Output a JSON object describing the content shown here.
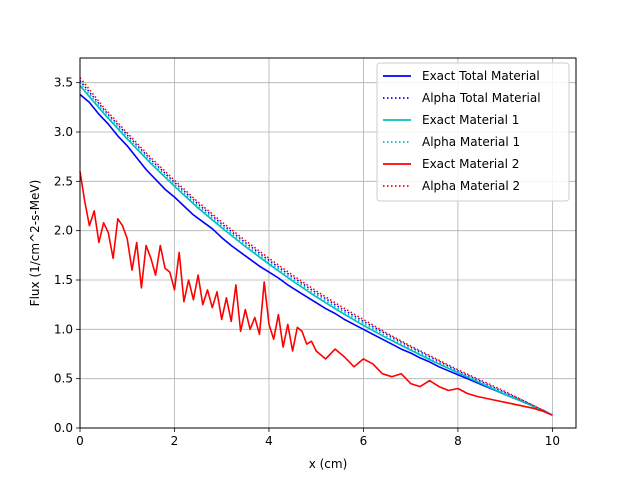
{
  "chart_data": {
    "type": "line",
    "title": "",
    "xlabel": "x (cm)",
    "ylabel": "Flux (1/cm^2-s-MeV)",
    "xlim": [
      0,
      10.5
    ],
    "ylim": [
      0,
      3.75
    ],
    "xticks": [
      0,
      2,
      4,
      6,
      8,
      10
    ],
    "yticks": [
      0.0,
      0.5,
      1.0,
      1.5,
      2.0,
      2.5,
      3.0,
      3.5
    ],
    "grid": true,
    "legend_position": "top-right",
    "series": [
      {
        "name": "Exact Total Material",
        "color": "#0000ff",
        "style": "solid",
        "x": [
          0,
          0.2,
          0.4,
          0.6,
          0.8,
          1.0,
          1.2,
          1.4,
          1.6,
          1.8,
          2.0,
          2.2,
          2.4,
          2.6,
          2.8,
          3.0,
          3.2,
          3.4,
          3.6,
          3.8,
          4.0,
          4.2,
          4.4,
          4.6,
          4.8,
          5.0,
          5.2,
          5.4,
          5.6,
          5.8,
          6.0,
          6.2,
          6.4,
          6.6,
          6.8,
          7.0,
          7.2,
          7.4,
          7.6,
          7.8,
          8.0,
          8.2,
          8.4,
          8.6,
          8.8,
          9.0,
          9.2,
          9.4,
          9.6,
          9.8,
          10.0
        ],
        "y": [
          3.38,
          3.3,
          3.18,
          3.08,
          2.96,
          2.86,
          2.74,
          2.62,
          2.52,
          2.42,
          2.34,
          2.25,
          2.16,
          2.09,
          2.02,
          1.93,
          1.85,
          1.78,
          1.71,
          1.64,
          1.58,
          1.52,
          1.45,
          1.39,
          1.33,
          1.27,
          1.21,
          1.16,
          1.1,
          1.05,
          1.0,
          0.95,
          0.9,
          0.85,
          0.8,
          0.76,
          0.71,
          0.67,
          0.62,
          0.58,
          0.54,
          0.5,
          0.46,
          0.42,
          0.38,
          0.34,
          0.3,
          0.26,
          0.22,
          0.18,
          0.13
        ]
      },
      {
        "name": "Alpha Total Material",
        "color": "#0000ff",
        "style": "dotted",
        "x": [
          0,
          0.5,
          1.0,
          1.5,
          2.0,
          2.5,
          3.0,
          3.5,
          4.0,
          4.5,
          5.0,
          5.5,
          6.0,
          6.5,
          7.0,
          7.5,
          8.0,
          8.5,
          9.0,
          9.5,
          10.0
        ],
        "y": [
          3.52,
          3.23,
          2.97,
          2.72,
          2.49,
          2.27,
          2.07,
          1.88,
          1.7,
          1.53,
          1.37,
          1.22,
          1.08,
          0.95,
          0.82,
          0.7,
          0.58,
          0.47,
          0.36,
          0.25,
          0.13
        ]
      },
      {
        "name": "Exact Material 1",
        "color": "#00bfbf",
        "style": "solid",
        "x": [
          0,
          0.5,
          1.0,
          1.5,
          2.0,
          2.5,
          3.0,
          3.5,
          4.0,
          4.5,
          5.0,
          5.5,
          6.0,
          6.5,
          7.0,
          7.5,
          8.0,
          8.5,
          9.0,
          9.5,
          10.0
        ],
        "y": [
          3.47,
          3.19,
          2.93,
          2.68,
          2.45,
          2.23,
          2.03,
          1.84,
          1.66,
          1.49,
          1.33,
          1.18,
          1.04,
          0.91,
          0.79,
          0.67,
          0.56,
          0.45,
          0.34,
          0.24,
          0.13
        ]
      },
      {
        "name": "Alpha Material 1",
        "color": "#00bfbf",
        "style": "dotted",
        "x": [
          0,
          0.5,
          1.0,
          1.5,
          2.0,
          2.5,
          3.0,
          3.5,
          4.0,
          4.5,
          5.0,
          5.5,
          6.0,
          6.5,
          7.0,
          7.5,
          8.0,
          8.5,
          9.0,
          9.5,
          10.0
        ],
        "y": [
          3.5,
          3.21,
          2.95,
          2.7,
          2.47,
          2.25,
          2.05,
          1.86,
          1.68,
          1.51,
          1.35,
          1.2,
          1.06,
          0.93,
          0.8,
          0.68,
          0.57,
          0.46,
          0.35,
          0.24,
          0.13
        ]
      },
      {
        "name": "Exact Material 2",
        "color": "#ff0000",
        "style": "solid",
        "x": [
          0,
          0.1,
          0.2,
          0.3,
          0.4,
          0.5,
          0.6,
          0.7,
          0.8,
          0.9,
          1.0,
          1.1,
          1.2,
          1.3,
          1.4,
          1.5,
          1.6,
          1.7,
          1.8,
          1.9,
          2.0,
          2.1,
          2.2,
          2.3,
          2.4,
          2.5,
          2.6,
          2.7,
          2.8,
          2.9,
          3.0,
          3.1,
          3.2,
          3.3,
          3.4,
          3.5,
          3.6,
          3.7,
          3.8,
          3.9,
          4.0,
          4.1,
          4.2,
          4.3,
          4.4,
          4.5,
          4.6,
          4.7,
          4.8,
          4.9,
          5.0,
          5.2,
          5.4,
          5.6,
          5.8,
          6.0,
          6.2,
          6.4,
          6.6,
          6.8,
          7.0,
          7.2,
          7.4,
          7.6,
          7.8,
          8.0,
          8.2,
          8.4,
          8.6,
          8.8,
          9.0,
          9.2,
          9.4,
          9.6,
          9.8,
          10.0
        ],
        "y": [
          2.6,
          2.3,
          2.05,
          2.2,
          1.88,
          2.08,
          1.98,
          1.72,
          2.12,
          2.05,
          1.92,
          1.6,
          1.88,
          1.42,
          1.85,
          1.72,
          1.55,
          1.85,
          1.62,
          1.58,
          1.4,
          1.78,
          1.28,
          1.5,
          1.3,
          1.55,
          1.25,
          1.4,
          1.22,
          1.38,
          1.1,
          1.32,
          1.08,
          1.45,
          0.98,
          1.2,
          1.0,
          1.12,
          0.95,
          1.48,
          1.05,
          0.9,
          1.15,
          0.82,
          1.05,
          0.78,
          1.02,
          0.98,
          0.85,
          0.88,
          0.78,
          0.7,
          0.8,
          0.72,
          0.62,
          0.7,
          0.65,
          0.55,
          0.52,
          0.55,
          0.45,
          0.42,
          0.48,
          0.42,
          0.38,
          0.4,
          0.35,
          0.32,
          0.3,
          0.28,
          0.26,
          0.24,
          0.22,
          0.2,
          0.17,
          0.13
        ]
      },
      {
        "name": "Alpha Material 2",
        "color": "#ff0000",
        "style": "dotted",
        "x": [
          0,
          0.5,
          1.0,
          1.5,
          2.0,
          2.5,
          3.0,
          3.5,
          4.0,
          4.5,
          5.0,
          5.5,
          6.0,
          6.5,
          7.0,
          7.5,
          8.0,
          8.5,
          9.0,
          9.5,
          10.0
        ],
        "y": [
          3.55,
          3.25,
          2.99,
          2.74,
          2.51,
          2.29,
          2.09,
          1.9,
          1.72,
          1.55,
          1.39,
          1.24,
          1.1,
          0.96,
          0.83,
          0.71,
          0.59,
          0.48,
          0.37,
          0.25,
          0.13
        ]
      }
    ]
  }
}
